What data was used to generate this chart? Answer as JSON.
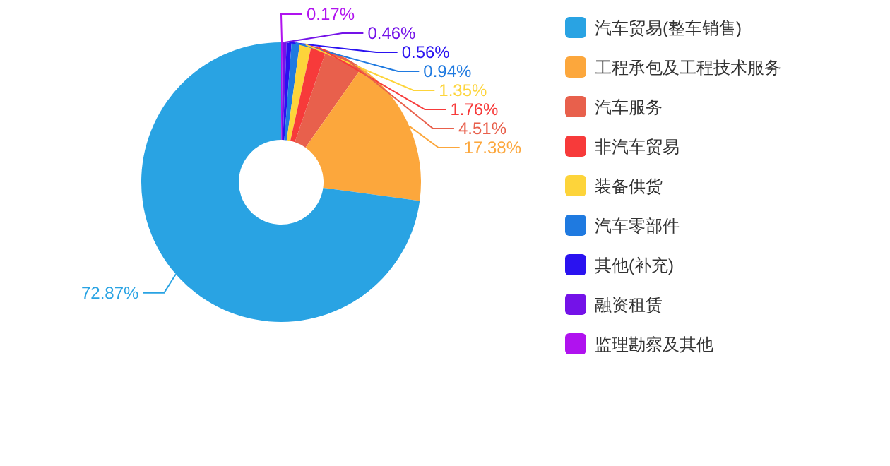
{
  "chart_data": {
    "type": "donut",
    "categories": [
      "汽车贸易(整车销售)",
      "工程承包及工程技术服务",
      "汽车服务",
      "非汽车贸易",
      "装备供货",
      "汽车零部件",
      "其他(补充)",
      "融资租赁",
      "监理勘察及其他"
    ],
    "values": [
      72.87,
      17.38,
      4.51,
      1.76,
      1.35,
      0.94,
      0.56,
      0.46,
      0.17
    ],
    "colors": [
      "#29a3e3",
      "#fca73c",
      "#e8604c",
      "#f73a3a",
      "#fdd43a",
      "#1f7ae0",
      "#2a12f0",
      "#7412e8",
      "#b012ef"
    ],
    "value_labels": [
      "72.87%",
      "17.38%",
      "4.51%",
      "1.76%",
      "1.35%",
      "0.94%",
      "0.56%",
      "0.46%",
      "0.17%"
    ],
    "legend": "right"
  }
}
